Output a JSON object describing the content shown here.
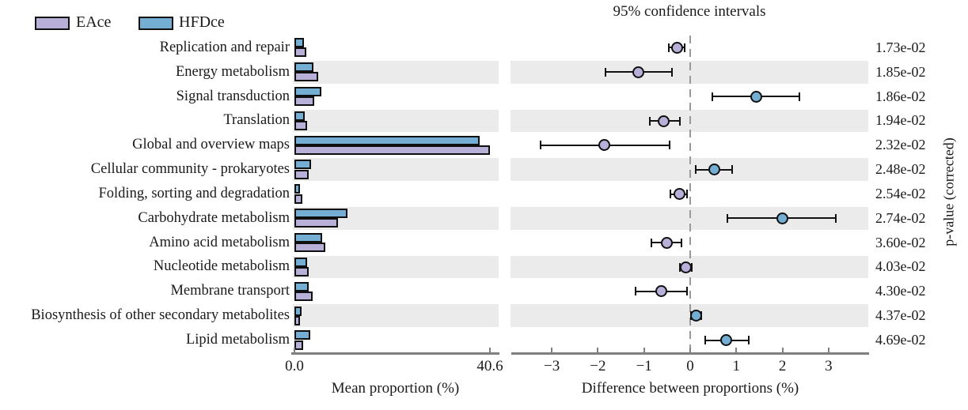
{
  "title": "95% confidence intervals",
  "legend": {
    "items": [
      {
        "label": "EAce",
        "color": "#b8b0d8"
      },
      {
        "label": "HFDce",
        "color": "#74afd3"
      }
    ]
  },
  "left_axis": {
    "label": "Mean proportion (%)",
    "tick_labels": [
      "0.0",
      "40.6"
    ],
    "tick_values": [
      0,
      40.6
    ]
  },
  "right_axis": {
    "label": "Difference between proportions (%)",
    "tick_labels": [
      "−3",
      "−2",
      "−1",
      "0",
      "1",
      "2",
      "3"
    ],
    "tick_values": [
      -3,
      -2,
      -1,
      0,
      1,
      2,
      3
    ]
  },
  "pvalue_axis_label": "p-value (corrected)",
  "colors": {
    "eace": "#b8b0d8",
    "hfdce": "#74afd3",
    "stripe": "#ebebeb",
    "axis": "#7f7f7f",
    "errorbar": "#111111"
  },
  "chart_data": {
    "type": "extended-error-bar",
    "title": "95% confidence intervals",
    "xlabel_left": "Mean proportion (%)",
    "xlabel_right": "Difference between proportions (%)",
    "ylabel_right": "p-value (corrected)",
    "xlim_left": [
      0,
      40.6
    ],
    "xlim_right": [
      -3.88,
      3.88
    ],
    "categories": [
      "Replication and repair",
      "Energy metabolism",
      "Signal transduction",
      "Translation",
      "Global and overview maps",
      "Cellular community - prokaryotes",
      "Folding, sorting and degradation",
      "Carbohydrate metabolism",
      "Amino acid metabolism",
      "Nucleotide metabolism",
      "Membrane transport",
      "Biosynthesis of other secondary metabolites",
      "Lipid metabolism"
    ],
    "series": [
      {
        "name": "EAce",
        "color": "#b8b0d8",
        "values": [
          2.5,
          5.0,
          4.1,
          2.6,
          40.6,
          2.9,
          1.6,
          9.0,
          6.4,
          2.9,
          3.8,
          1.2,
          1.8
        ]
      },
      {
        "name": "HFDce",
        "color": "#74afd3",
        "values": [
          2.0,
          3.9,
          5.5,
          2.2,
          38.5,
          3.4,
          1.2,
          11.0,
          5.7,
          2.6,
          3.0,
          1.4,
          3.2
        ]
      }
    ],
    "differences": {
      "mean": [
        -0.28,
        -1.12,
        1.43,
        -0.57,
        -1.86,
        0.52,
        -0.24,
        2.0,
        -0.51,
        -0.1,
        -0.62,
        0.12,
        0.78
      ],
      "ci_low": [
        -0.47,
        -1.83,
        0.48,
        -0.88,
        -3.24,
        0.12,
        -0.43,
        0.8,
        -0.84,
        -0.22,
        -1.18,
        0.01,
        0.32
      ],
      "ci_high": [
        -0.12,
        -0.4,
        2.37,
        -0.22,
        -0.45,
        0.91,
        -0.07,
        3.15,
        -0.19,
        0.03,
        -0.07,
        0.24,
        1.26
      ]
    },
    "p_values": [
      "1.73e-02",
      "1.85e-02",
      "1.86e-02",
      "1.94e-02",
      "2.32e-02",
      "2.48e-02",
      "2.54e-02",
      "2.74e-02",
      "3.60e-02",
      "4.03e-02",
      "4.30e-02",
      "4.37e-02",
      "4.69e-02"
    ]
  }
}
